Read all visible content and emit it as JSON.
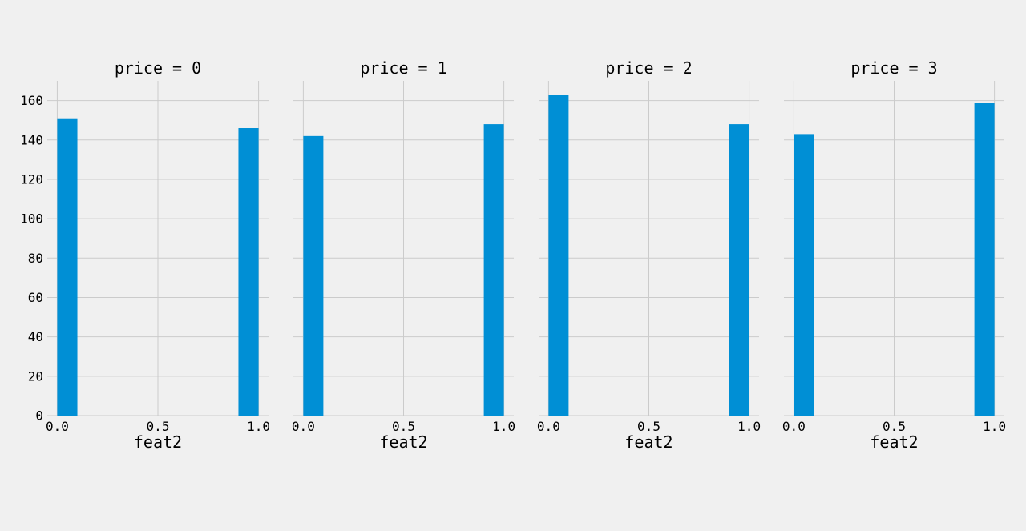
{
  "chart_data": {
    "type": "bar",
    "facet_variable": "price",
    "xlabel": "feat2",
    "ylabel": "",
    "ylim": [
      0,
      170
    ],
    "xlim": [
      0.0,
      1.0
    ],
    "y_ticks": [
      0,
      20,
      40,
      60,
      80,
      100,
      120,
      140,
      160
    ],
    "y_tick_labels": [
      "0",
      "20",
      "40",
      "60",
      "80",
      "100",
      "120",
      "140",
      "160"
    ],
    "x_ticks": [
      0.0,
      0.5,
      1.0
    ],
    "x_tick_labels": [
      "0.0",
      "0.5",
      "1.0"
    ],
    "grid": true,
    "bar_color": "#008fd5",
    "facets": [
      {
        "title": "price = 0",
        "bars": [
          {
            "x0": 0.0,
            "x1": 0.1,
            "value": 151
          },
          {
            "x0": 0.9,
            "x1": 1.0,
            "value": 146
          }
        ]
      },
      {
        "title": "price = 1",
        "bars": [
          {
            "x0": 0.0,
            "x1": 0.1,
            "value": 142
          },
          {
            "x0": 0.9,
            "x1": 1.0,
            "value": 148
          }
        ]
      },
      {
        "title": "price = 2",
        "bars": [
          {
            "x0": 0.0,
            "x1": 0.1,
            "value": 163
          },
          {
            "x0": 0.9,
            "x1": 1.0,
            "value": 148
          }
        ]
      },
      {
        "title": "price = 3",
        "bars": [
          {
            "x0": 0.0,
            "x1": 0.1,
            "value": 143
          },
          {
            "x0": 0.9,
            "x1": 1.0,
            "value": 159
          }
        ]
      }
    ]
  }
}
